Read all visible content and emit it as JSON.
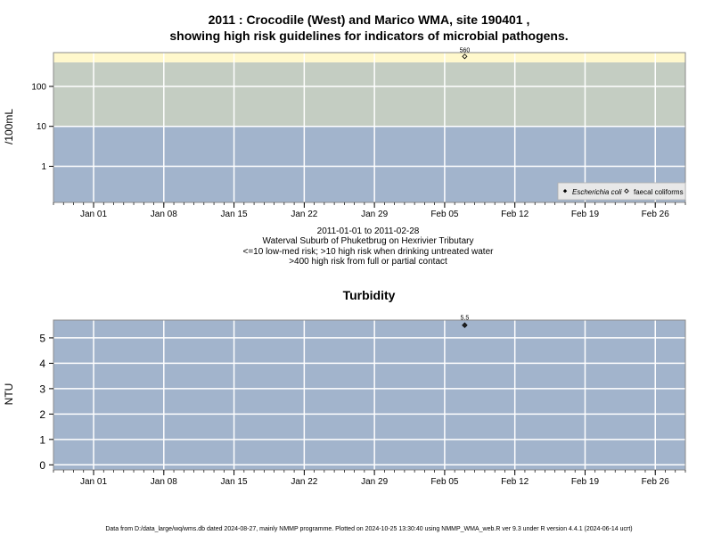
{
  "page": {
    "title_line1": "2011 : Crocodile (West) and Marico WMA, site 190401 ,",
    "title_line2": "showing high risk guidelines for indicators of microbial pathogens.",
    "footer": "Data from D:/data_large/wq/wms.db dated 2024-08-27, mainly NMMP programme. Plotted on 2024-10-25 13:30:40 using NMMP_WMA_web.R ver 9.3 under R version 4.4.1 (2024-06-14 ucrt)"
  },
  "colors": {
    "band_low": "#a2b4cc",
    "band_mid": "#c4cdc2",
    "band_high": "#fff8cc",
    "grid": "#ffffff",
    "marker": "#000000"
  },
  "chart_data": [
    {
      "type": "scatter",
      "title": "",
      "ylabel": "/100mL",
      "y_scale": "log",
      "ylim": [
        0.125,
        700
      ],
      "xlim": [
        "2010-12-28",
        "2011-03-01"
      ],
      "x_tick_labels": [
        "Jan 01",
        "Jan 08",
        "Jan 15",
        "Jan 22",
        "Jan 29",
        "Feb 05",
        "Feb 12",
        "Feb 19",
        "Feb 26"
      ],
      "y_ticks": [
        1,
        10,
        100
      ],
      "y_tick_labels": [
        "1",
        "10",
        "100"
      ],
      "bands": [
        {
          "from": 0.125,
          "to": 10,
          "color": "#a2b4cc"
        },
        {
          "from": 10,
          "to": 400,
          "color": "#c4cdc2"
        },
        {
          "from": 400,
          "to": 700,
          "color": "#fff8cc"
        }
      ],
      "series": [
        {
          "name": "Escherichia coli",
          "marker": "filled-diamond",
          "points": []
        },
        {
          "name": "faecal coliforms",
          "marker": "open-diamond",
          "points": [
            {
              "x": "2011-02-07",
              "y": 560,
              "label": "560"
            }
          ]
        }
      ],
      "legend_position": "bottom-right",
      "grid": true,
      "notes": [
        "2011-01-01 to 2011-02-28",
        "Waterval Suburb of Phuketbrug on Hexrivier Tributary",
        "<=10 low-med risk; >10 high risk when drinking untreated water",
        ">400 high risk from full or partial contact"
      ]
    },
    {
      "type": "scatter",
      "title": "Turbidity",
      "ylabel": "NTU",
      "ylim": [
        -0.2,
        5.7
      ],
      "xlim": [
        "2010-12-28",
        "2011-03-01"
      ],
      "x_tick_labels": [
        "Jan 01",
        "Jan 08",
        "Jan 15",
        "Jan 22",
        "Jan 29",
        "Feb 05",
        "Feb 12",
        "Feb 19",
        "Feb 26"
      ],
      "y_ticks": [
        0,
        1,
        2,
        3,
        4,
        5
      ],
      "y_tick_labels": [
        "0",
        "1",
        "2",
        "3",
        "4",
        "5"
      ],
      "series": [
        {
          "marker": "filled-diamond",
          "points": [
            {
              "x": "2011-02-07",
              "y": 5.5,
              "label": "5.5"
            }
          ]
        }
      ],
      "grid": true
    }
  ]
}
